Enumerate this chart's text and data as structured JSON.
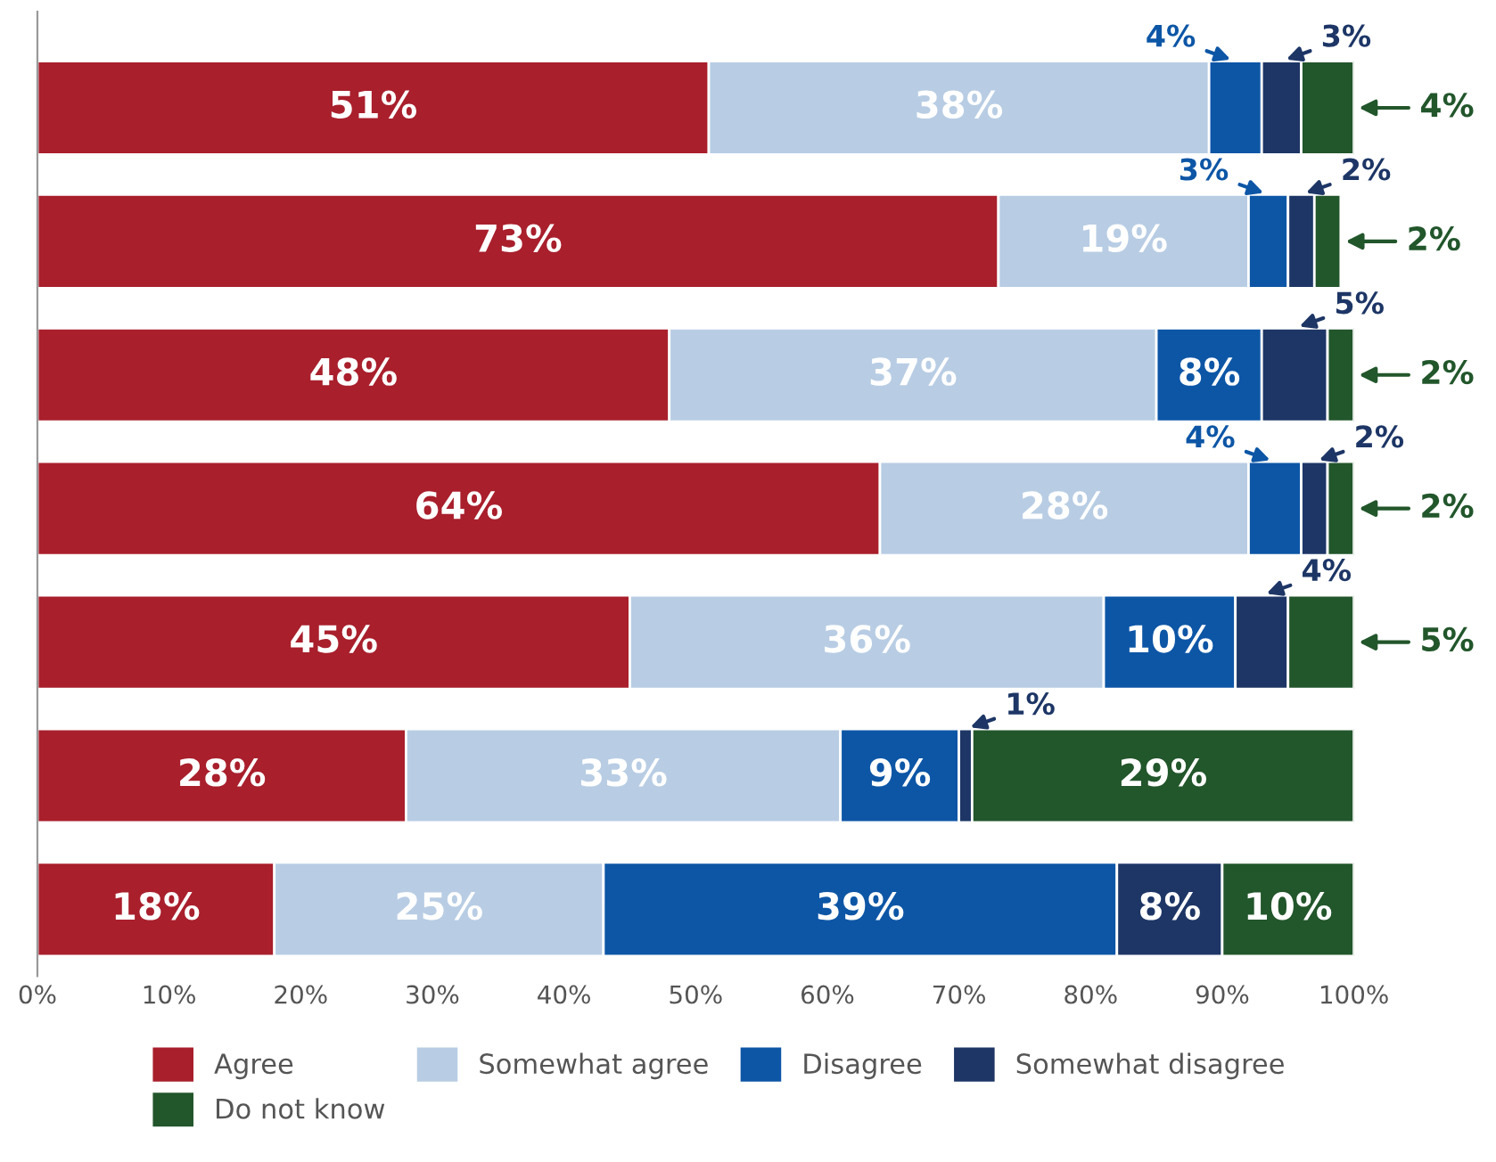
{
  "chart_data": {
    "type": "bar",
    "orientation": "horizontal",
    "stacked": true,
    "legend": "bottom",
    "grid": false,
    "categories": [
      null,
      null,
      null,
      null,
      null,
      null,
      null
    ],
    "xlim": [
      0,
      100
    ],
    "xticks": [
      {
        "value": 0,
        "label": "0%"
      },
      {
        "value": 10,
        "label": "10%"
      },
      {
        "value": 20,
        "label": "20%"
      },
      {
        "value": 30,
        "label": "30%"
      },
      {
        "value": 40,
        "label": "40%"
      },
      {
        "value": 50,
        "label": "50%"
      },
      {
        "value": 60,
        "label": "60%"
      },
      {
        "value": 70,
        "label": "70%"
      },
      {
        "value": 80,
        "label": "80%"
      },
      {
        "value": 90,
        "label": "90%"
      },
      {
        "value": 100,
        "label": "100%"
      }
    ],
    "series": [
      {
        "name": "Agree",
        "color": "#a91f2c",
        "values": [
          51,
          73,
          48,
          64,
          45,
          28,
          18
        ],
        "value_labels": [
          "51%",
          "73%",
          "48%",
          "64%",
          "45%",
          "28%",
          "18%"
        ]
      },
      {
        "name": "Somewhat agree",
        "color": "#b8cde4",
        "values": [
          38,
          19,
          37,
          28,
          36,
          33,
          25
        ],
        "value_labels": [
          "38%",
          "19%",
          "37%",
          "28%",
          "36%",
          "33%",
          "25%"
        ]
      },
      {
        "name": "Disagree",
        "color": "#0d56a6",
        "values": [
          4,
          3,
          8,
          4,
          10,
          9,
          39
        ],
        "value_labels": [
          "4%",
          "3%",
          "8%",
          "4%",
          "10%",
          "9%",
          "39%"
        ]
      },
      {
        "name": "Somewhat disagree",
        "color": "#1d3666",
        "values": [
          3,
          2,
          5,
          2,
          4,
          1,
          8
        ],
        "value_labels": [
          "3%",
          "2%",
          "5%",
          "2%",
          "4%",
          "1%",
          "8%"
        ]
      },
      {
        "name": "Do not know",
        "color": "#22562b",
        "values": [
          4,
          2,
          2,
          2,
          5,
          29,
          10
        ],
        "value_labels": [
          "4%",
          "2%",
          "2%",
          "2%",
          "5%",
          "29%",
          "10%"
        ]
      }
    ]
  }
}
